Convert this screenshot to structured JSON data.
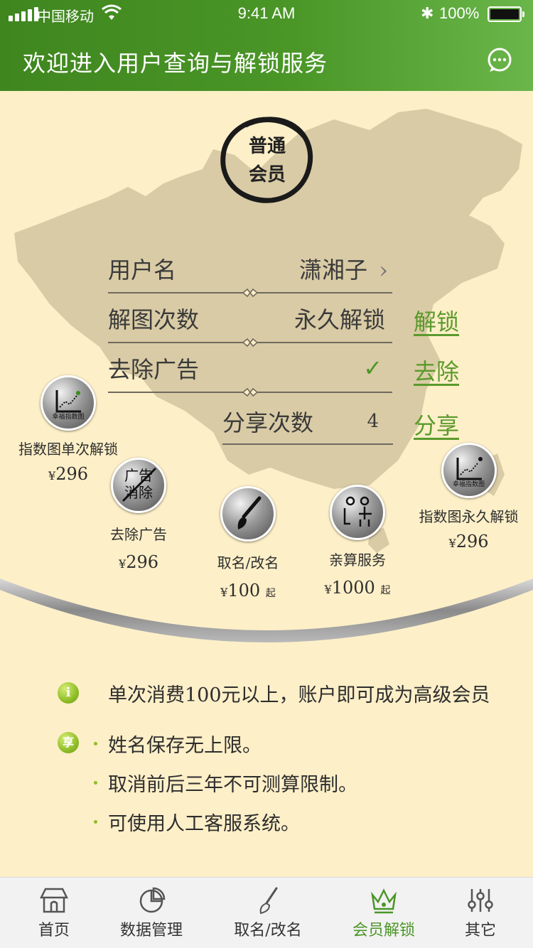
{
  "status_bar": {
    "carrier": "中国移动",
    "time": "9:41 AM",
    "battery": "100%"
  },
  "header": {
    "title": "欢迎进入用户查询与解锁服务",
    "chat_icon": "chat-bubble-icon"
  },
  "member": {
    "badge_line1": "普通",
    "badge_line2": "会员"
  },
  "rows": [
    {
      "label": "用户名",
      "value": "潇湘子",
      "chevron": "›"
    },
    {
      "label": "解图次数",
      "value": "永久解锁",
      "action": "解锁"
    },
    {
      "label": "去除广告",
      "value": "✓",
      "action": "去除"
    },
    {
      "label": "分享次数",
      "value": "4",
      "action": "分享"
    }
  ],
  "products": [
    {
      "name": "指数图单次解锁",
      "price": "296",
      "icon": "index-chart-icon",
      "icon_text": "幸福指数图"
    },
    {
      "name": "去除广告",
      "price": "296",
      "icon": "remove-ad-icon",
      "icon_text_1": "广告",
      "icon_text_2": "消除"
    },
    {
      "name": "取名/改名",
      "price": "100",
      "suffix": "起",
      "icon": "brush-icon"
    },
    {
      "name": "亲算服务",
      "price": "1000",
      "suffix": "起",
      "icon": "consultant-icon"
    },
    {
      "name": "指数图永久解锁",
      "price": "296",
      "icon": "index-chart-icon",
      "icon_text": "幸福指数图"
    }
  ],
  "currency": "¥",
  "info": {
    "notice_icon": "i",
    "notice": "单次消费100元以上，账户即可成为高级会员",
    "perk_icon": "享",
    "perks": [
      "姓名保存无上限。",
      "取消前后三年不可测算限制。",
      "可使用人工客服系统。"
    ]
  },
  "tabs": [
    {
      "label": "首页",
      "icon": "home-icon",
      "active": false
    },
    {
      "label": "数据管理",
      "icon": "pie-chart-icon",
      "active": false
    },
    {
      "label": "取名/改名",
      "icon": "brush-icon",
      "active": false
    },
    {
      "label": "会员解锁",
      "icon": "crown-icon",
      "active": true
    },
    {
      "label": "其它",
      "icon": "sliders-icon",
      "active": false
    }
  ],
  "colors": {
    "accent": "#4a9627",
    "link": "#5a9a2c",
    "background": "#fdefc8",
    "map": "#d9cba5"
  }
}
